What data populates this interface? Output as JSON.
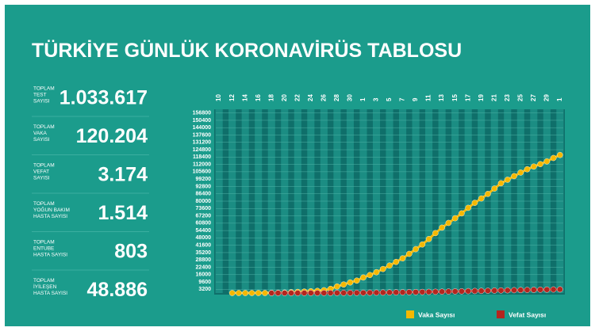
{
  "header": {
    "title": "TÜRKİYE GÜNLÜK KORONAVİRÜS TABLOSU"
  },
  "stats": [
    {
      "label": [
        "TOPLAM",
        "TEST",
        "SAYISI"
      ],
      "value": "1.033.617"
    },
    {
      "label": [
        "TOPLAM",
        "VAKA",
        "SAYISI"
      ],
      "value": "120.204"
    },
    {
      "label": [
        "TOPLAM",
        "VEFAT",
        "SAYISI"
      ],
      "value": "3.174"
    },
    {
      "label": [
        "TOPLAM",
        "YOĞUN BAKIM",
        "HASTA SAYISI"
      ],
      "value": "1.514"
    },
    {
      "label": [
        "TOPLAM",
        "ENTUBE",
        "HASTA SAYISI"
      ],
      "value": "803"
    },
    {
      "label": [
        "TOPLAM",
        "İYİLEŞEN",
        "HASTA SAYISI"
      ],
      "value": "48.886"
    }
  ],
  "chart_data": {
    "type": "line",
    "categories": [
      "10",
      null,
      "12",
      null,
      "14",
      null,
      "16",
      null,
      "18",
      null,
      "20",
      null,
      "22",
      null,
      "24",
      null,
      "26",
      null,
      "28",
      null,
      "30",
      null,
      "1",
      null,
      "3",
      null,
      "5",
      null,
      "7",
      null,
      "9",
      null,
      "11",
      null,
      "13",
      null,
      "15",
      null,
      "17",
      null,
      "19",
      null,
      "21",
      null,
      "23",
      null,
      "25",
      null,
      "27",
      null,
      "29",
      null,
      "1"
    ],
    "series": [
      {
        "name": "Vaka Sayısı",
        "color": "#f5b800",
        "values": [
          null,
          null,
          1,
          1,
          5,
          6,
          18,
          47,
          98,
          191,
          359,
          670,
          947,
          1236,
          1529,
          1872,
          2433,
          3629,
          5698,
          7402,
          9217,
          10827,
          13531,
          15679,
          18135,
          20921,
          23934,
          27069,
          30217,
          34109,
          38226,
          42282,
          47029,
          52167,
          56956,
          61049,
          65111,
          69392,
          74193,
          78546,
          82329,
          86306,
          90980,
          95591,
          98674,
          101790,
          104912,
          107773,
          110130,
          112261,
          114653,
          117589,
          120204
        ]
      },
      {
        "name": "Vefat Sayısı",
        "color": "#b3261e",
        "values": [
          null,
          null,
          null,
          null,
          null,
          null,
          null,
          null,
          1,
          2,
          3,
          4,
          9,
          30,
          37,
          44,
          59,
          75,
          92,
          108,
          131,
          168,
          214,
          277,
          356,
          425,
          501,
          574,
          649,
          725,
          812,
          908,
          1006,
          1101,
          1198,
          1296,
          1403,
          1518,
          1643,
          1769,
          1890,
          2017,
          2140,
          2259,
          2376,
          2491,
          2600,
          2706,
          2805,
          2900,
          2992,
          3081,
          3174
        ]
      }
    ],
    "ylim": [
      0,
      160000
    ],
    "yticks": [
      3200,
      9600,
      16000,
      22400,
      28800,
      35200,
      41600,
      48000,
      54400,
      60800,
      67200,
      73600,
      80000,
      86400,
      92800,
      99200,
      105600,
      112000,
      118400,
      124800,
      131200,
      137600,
      144000,
      150400,
      156800
    ],
    "grid": true
  }
}
